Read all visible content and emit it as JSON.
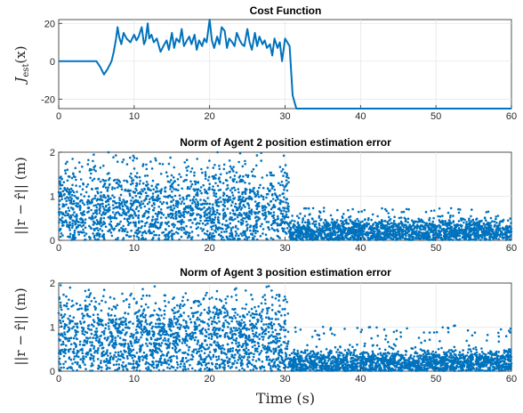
{
  "figure": {
    "xlabel": "Time (s)",
    "series_color": "#0072BD"
  },
  "chart_data": [
    {
      "type": "line",
      "title": "Cost Function",
      "ylabel": "J_est(x)",
      "ylabel_display": "J",
      "ylabel_sub": "est",
      "ylabel_tail": "(x)",
      "xlim": [
        0,
        60
      ],
      "ylim": [
        -25,
        22
      ],
      "xticks": [
        0,
        10,
        20,
        30,
        40,
        50,
        60
      ],
      "yticks": [
        -20,
        0,
        20
      ],
      "grid": true,
      "series": [
        {
          "x": [
            0,
            1,
            2,
            3,
            4,
            5,
            5.5,
            6,
            6.5,
            7,
            7.3,
            7.6,
            7.8,
            8,
            8.3,
            8.6,
            9,
            9.5,
            10,
            10.3,
            10.6,
            11,
            11.3,
            11.5,
            11.8,
            12,
            12.3,
            12.6,
            13,
            13.5,
            14,
            14.3,
            14.6,
            15,
            15.3,
            15.6,
            16,
            16.3,
            16.6,
            17,
            17.3,
            17.6,
            18,
            18.3,
            18.6,
            19,
            19.3,
            19.6,
            20,
            20.3,
            20.6,
            21,
            21.3,
            21.6,
            22,
            22.3,
            22.6,
            23,
            23.3,
            23.6,
            24,
            24.3,
            24.6,
            25,
            25.3,
            25.6,
            26,
            26.3,
            26.6,
            27,
            27.3,
            27.6,
            28,
            28.3,
            28.6,
            29,
            29.3,
            29.6,
            30,
            30.3,
            30.6,
            31,
            31.5,
            32,
            33,
            35,
            40,
            45,
            50,
            55,
            60
          ],
          "y": [
            0,
            0,
            0,
            0,
            0,
            0,
            -3,
            -7,
            -4,
            0,
            5,
            12,
            18,
            13,
            9,
            15,
            12,
            10,
            14,
            11,
            13,
            18,
            9,
            11,
            20,
            12,
            14,
            10,
            12,
            5,
            9,
            11,
            6,
            15,
            7,
            12,
            10,
            17,
            8,
            11,
            13,
            9,
            14,
            6,
            11,
            8,
            12,
            10,
            22,
            11,
            7,
            13,
            9,
            18,
            16,
            7,
            12,
            10,
            8,
            15,
            11,
            9,
            8,
            17,
            10,
            6,
            15,
            8,
            13,
            9,
            11,
            7,
            9,
            3,
            12,
            7,
            10,
            0,
            12,
            10,
            8,
            -18,
            -25,
            -25,
            -25,
            -25,
            -25,
            -25,
            -25,
            -25,
            -25
          ]
        }
      ]
    },
    {
      "type": "scatter",
      "title": "Norm of Agent 2 position estimation error",
      "ylabel": "||r − r̂|| (m)",
      "xlim": [
        0,
        60
      ],
      "ylim": [
        0,
        2
      ],
      "xticks": [
        0,
        10,
        20,
        30,
        40,
        50,
        60
      ],
      "yticks": [
        0,
        1,
        2
      ],
      "grid": true,
      "description_of_values": [
        {
          "x_range": [
            0,
            30.5
          ],
          "value_range": [
            0,
            2.0
          ],
          "mean_approx": 0.7
        },
        {
          "x_range": [
            30.5,
            60
          ],
          "value_range": [
            0,
            0.75
          ],
          "mean_approx": 0.2
        }
      ]
    },
    {
      "type": "scatter",
      "title": "Norm of Agent 3 position estimation error",
      "ylabel": "||r − r̂|| (m)",
      "xlim": [
        0,
        60
      ],
      "ylim": [
        0,
        2
      ],
      "xticks": [
        0,
        10,
        20,
        30,
        40,
        50,
        60
      ],
      "yticks": [
        0,
        1,
        2
      ],
      "grid": true,
      "description_of_values": [
        {
          "x_range": [
            0,
            30.5
          ],
          "value_range": [
            0,
            1.95
          ],
          "mean_approx": 0.7
        },
        {
          "x_range": [
            30.5,
            60
          ],
          "value_range": [
            0,
            1.05
          ],
          "mean_approx": 0.2
        }
      ]
    }
  ]
}
